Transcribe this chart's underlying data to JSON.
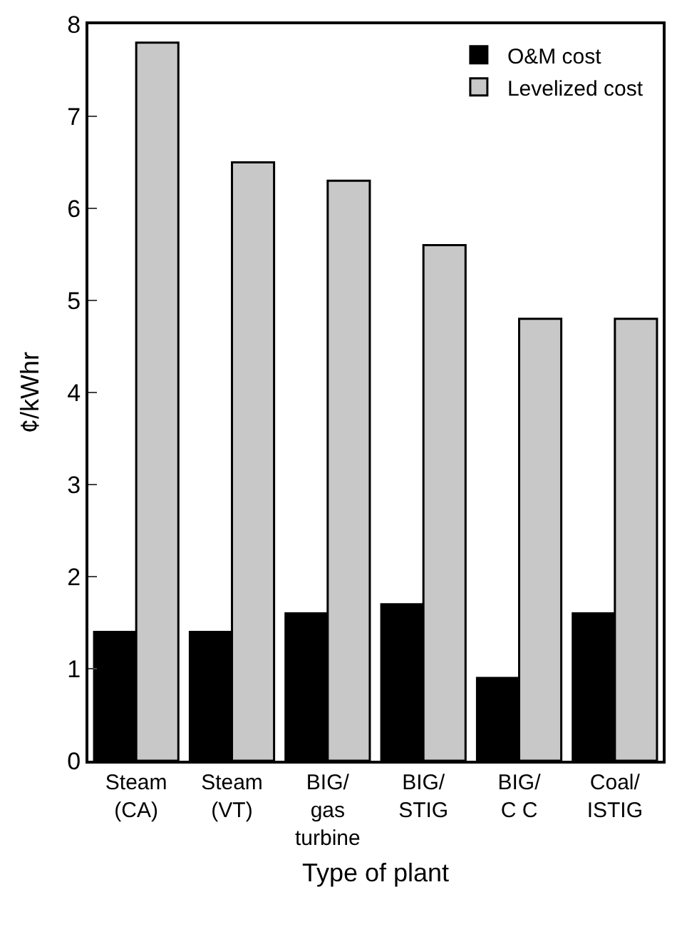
{
  "chart_data": {
    "type": "bar",
    "xlabel": "Type of plant",
    "ylabel": "¢/kWhr",
    "categories": [
      "Steam\n(CA)",
      "Steam\n(VT)",
      "BIG/\ngas\nturbine",
      "BIG/\nSTIG",
      "BIG/\nC C",
      "Coal/\nISTIG"
    ],
    "series": [
      {
        "name": "O&M cost",
        "color": "#000000",
        "values": [
          1.4,
          1.4,
          1.6,
          1.7,
          0.9,
          1.6
        ]
      },
      {
        "name": "Levelized cost",
        "color": "#c8c8c8",
        "values": [
          7.8,
          6.5,
          6.3,
          5.6,
          4.8,
          4.8
        ]
      }
    ],
    "ylim": [
      0,
      8
    ],
    "yticks": [
      0,
      1,
      2,
      3,
      4,
      5,
      6,
      7,
      8
    ],
    "legend": "top right"
  }
}
